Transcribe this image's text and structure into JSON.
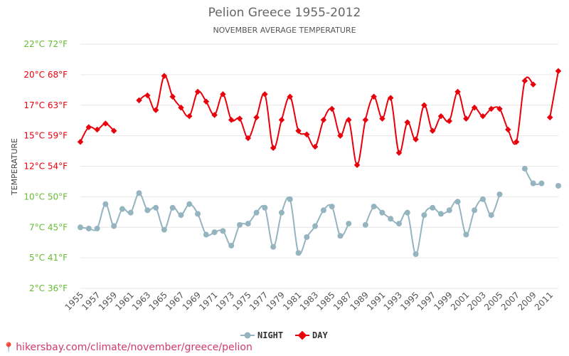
{
  "colors": {
    "day": "#e8000b",
    "night": "#94b4bf",
    "grid": "#e6e6e6",
    "ytick_12_20": "#e8000b",
    "ytick_other": "#66bb33"
  },
  "chart_data": {
    "type": "line",
    "title": "Pelion Greece 1955-2012",
    "subtitle": "NOVEMBER AVERAGE TEMPERATURE",
    "ylabel": "TEMPERATURE",
    "y_ticks": [
      {
        "value": 2.5,
        "label": "2°C 36°F"
      },
      {
        "value": 5,
        "label": "5°C 41°F"
      },
      {
        "value": 7.5,
        "label": "7°C 45°F"
      },
      {
        "value": 10,
        "label": "10°C 50°F"
      },
      {
        "value": 12.5,
        "label": "12°C 54°F"
      },
      {
        "value": 15,
        "label": "15°C 59°F"
      },
      {
        "value": 17.5,
        "label": "17°C 63°F"
      },
      {
        "value": 20,
        "label": "20°C 68°F"
      },
      {
        "value": 22.5,
        "label": "22°C 72°F"
      }
    ],
    "ylim": [
      2.5,
      22.5
    ],
    "x_tick_labels": [
      "1955",
      "1957",
      "1959",
      "1961",
      "1963",
      "1965",
      "1967",
      "1969",
      "1971",
      "1973",
      "1975",
      "1977",
      "1979",
      "1981",
      "1983",
      "1985",
      "1987",
      "1989",
      "1991",
      "1993",
      "1995",
      "1997",
      "1999",
      "2001",
      "2003",
      "2005",
      "2007",
      "2009",
      "2011"
    ],
    "x": [
      1955,
      1956,
      1957,
      1958,
      1959,
      1960,
      1961,
      1962,
      1963,
      1964,
      1965,
      1966,
      1967,
      1968,
      1969,
      1970,
      1971,
      1972,
      1973,
      1974,
      1975,
      1976,
      1977,
      1978,
      1979,
      1980,
      1981,
      1982,
      1983,
      1984,
      1985,
      1986,
      1987,
      1988,
      1989,
      1990,
      1991,
      1992,
      1993,
      1994,
      1995,
      1996,
      1997,
      1998,
      1999,
      2000,
      2001,
      2002,
      2003,
      2004,
      2005,
      2006,
      2007,
      2008,
      2009,
      2010,
      2011,
      2012
    ],
    "series": [
      {
        "name": "NIGHT",
        "values": [
          7.5,
          7.4,
          7.4,
          9.4,
          7.6,
          9.0,
          8.7,
          10.3,
          8.9,
          9.1,
          7.3,
          9.1,
          8.5,
          9.4,
          8.6,
          6.9,
          7.1,
          7.2,
          6.0,
          7.7,
          7.8,
          8.7,
          9.1,
          5.9,
          8.7,
          9.8,
          5.4,
          6.7,
          7.6,
          8.9,
          9.2,
          6.8,
          7.8,
          null,
          7.7,
          9.2,
          8.7,
          8.2,
          7.8,
          8.7,
          5.3,
          8.5,
          9.1,
          8.6,
          8.9,
          9.6,
          6.9,
          8.9,
          9.8,
          8.5,
          10.2,
          null,
          null,
          12.3,
          11.1,
          11.1,
          null,
          10.9
        ]
      },
      {
        "name": "DAY",
        "values": [
          14.5,
          15.7,
          15.5,
          16.0,
          15.4,
          null,
          null,
          17.9,
          18.3,
          17.1,
          19.9,
          18.2,
          17.3,
          16.6,
          18.6,
          17.8,
          16.7,
          18.4,
          16.3,
          16.4,
          14.8,
          16.5,
          18.4,
          14.0,
          16.3,
          18.2,
          15.4,
          15.1,
          14.1,
          16.3,
          17.2,
          15.0,
          16.3,
          12.6,
          16.3,
          18.2,
          16.4,
          18.1,
          13.6,
          16.1,
          14.7,
          17.5,
          15.4,
          16.6,
          16.2,
          18.6,
          16.4,
          17.3,
          16.6,
          17.2,
          17.2,
          15.5,
          14.5,
          19.5,
          19.2,
          null,
          16.5,
          20.3
        ]
      }
    ],
    "legend": {
      "placement": "bottom-center"
    },
    "grid": true
  },
  "source": {
    "text": "hikersbay.com/climate/november/greece/pelion"
  }
}
